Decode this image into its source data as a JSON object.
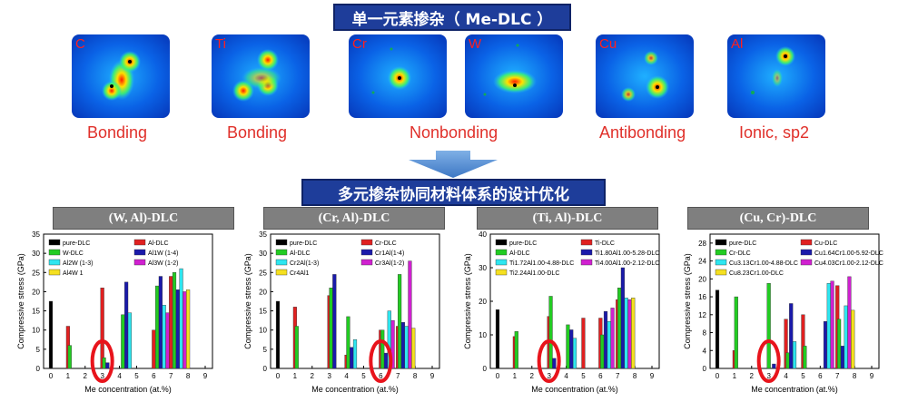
{
  "banner_top": "单一元素掺杂（ Me-DLC ）",
  "banner_mid": "多元掺杂协同材料体系的设计优化",
  "elements": [
    {
      "symbol": "C",
      "caption": "Bonding"
    },
    {
      "symbol": "Ti",
      "caption": "Bonding"
    },
    {
      "symbol": "Cr",
      "caption": "Nonbonding"
    },
    {
      "symbol": "W",
      "caption": ""
    },
    {
      "symbol": "Cu",
      "caption": "Antibonding"
    },
    {
      "symbol": "Al",
      "caption": "Ionic, sp2"
    }
  ],
  "colors": {
    "banner": "#1e3d9a",
    "tab": "#7f7f7f",
    "highlight": "#e8141c"
  },
  "chart_data": [
    {
      "type": "bar",
      "title": "(W, Al)-DLC",
      "xlabel": "Me concentration (at.%)",
      "ylabel": "Compressive stress (GPa)",
      "ylim": [
        0,
        35
      ],
      "yticks": [
        0,
        5,
        10,
        15,
        20,
        25,
        30,
        35
      ],
      "xticks": [
        0,
        1,
        2,
        3,
        4,
        5,
        6,
        7,
        8,
        9
      ],
      "legend": [
        "pure-DLC",
        "Al-DLC",
        "W-DLC",
        "Al1W (1-4)",
        "Al2W (1-3)",
        "Al3W (1-2)",
        "Al4W 1"
      ],
      "series": [
        {
          "name": "pure-DLC",
          "color": "#000000",
          "points": [
            [
              0,
              17.5
            ]
          ]
        },
        {
          "name": "Al-DLC",
          "color": "#e02020",
          "points": [
            [
              1,
              11
            ],
            [
              3,
              21
            ],
            [
              6,
              10
            ],
            [
              7,
              24
            ]
          ]
        },
        {
          "name": "W-DLC",
          "color": "#22cc22",
          "points": [
            [
              1.1,
              6
            ],
            [
              3.1,
              2.8
            ],
            [
              4.2,
              14
            ],
            [
              6.2,
              21.5
            ],
            [
              7.2,
              25
            ]
          ]
        },
        {
          "name": "Al1W (1-4)",
          "color": "#1a1aaa",
          "points": [
            [
              3.3,
              1.5
            ],
            [
              4.4,
              22.5
            ],
            [
              6.4,
              24
            ],
            [
              7.4,
              20.5
            ]
          ]
        },
        {
          "name": "Al2W (1-3)",
          "color": "#2ee6f0",
          "points": [
            [
              4.6,
              14.5
            ],
            [
              6.6,
              16.5
            ],
            [
              7.6,
              26
            ]
          ]
        },
        {
          "name": "Al3W (1-2)",
          "color": "#d020d0",
          "points": [
            [
              6.8,
              14.5
            ],
            [
              7.8,
              20
            ]
          ]
        },
        {
          "name": "Al4W 1",
          "color": "#f5e020",
          "points": [
            [
              8,
              20.5
            ]
          ]
        }
      ],
      "highlight_x": 3
    },
    {
      "type": "bar",
      "title": "(Cr, Al)-DLC",
      "xlabel": "Me concentration (at.%)",
      "ylabel": "Compressive stress (GPa)",
      "ylim": [
        0,
        35
      ],
      "yticks": [
        0,
        5,
        10,
        15,
        20,
        25,
        30,
        35
      ],
      "xticks": [
        0,
        1,
        2,
        3,
        4,
        5,
        6,
        7,
        8,
        9
      ],
      "legend": [
        "pure-DLC",
        "Cr-DLC",
        "Al-DLC",
        "Cr1Al(1-4)",
        "Cr2Al(1-3)",
        "Cr3Al(1-2)",
        "Cr4Al1"
      ],
      "series": [
        {
          "name": "pure-DLC",
          "color": "#000000",
          "points": [
            [
              0,
              17.5
            ]
          ]
        },
        {
          "name": "Cr-DLC",
          "color": "#e02020",
          "points": [
            [
              1,
              16
            ],
            [
              3,
              19
            ],
            [
              4,
              3.5
            ],
            [
              6,
              10
            ],
            [
              7,
              11
            ]
          ]
        },
        {
          "name": "Al-DLC",
          "color": "#22cc22",
          "points": [
            [
              1.1,
              11
            ],
            [
              3.1,
              21
            ],
            [
              4.1,
              13.5
            ],
            [
              6.1,
              10
            ],
            [
              7.1,
              24.5
            ]
          ]
        },
        {
          "name": "Cr1Al(1-4)",
          "color": "#1a1aaa",
          "points": [
            [
              3.3,
              24.5
            ],
            [
              4.3,
              5.5
            ],
            [
              6.3,
              4
            ],
            [
              7.3,
              12
            ]
          ]
        },
        {
          "name": "Cr2Al(1-3)",
          "color": "#2ee6f0",
          "points": [
            [
              4.5,
              7.5
            ],
            [
              6.5,
              15
            ],
            [
              7.5,
              11
            ]
          ]
        },
        {
          "name": "Cr3Al(1-2)",
          "color": "#d020d0",
          "points": [
            [
              6.7,
              12.5
            ],
            [
              7.7,
              28
            ]
          ]
        },
        {
          "name": "Cr4Al1",
          "color": "#f5e020",
          "points": [
            [
              7.9,
              10.5
            ]
          ]
        }
      ],
      "highlight_x": 6
    },
    {
      "type": "bar",
      "title": "(Ti, Al)-DLC",
      "xlabel": "Me concentration (at.%)",
      "ylabel": "Compressive stress (GPa)",
      "ylim": [
        0,
        40
      ],
      "yticks": [
        0,
        10,
        20,
        30,
        40
      ],
      "xticks": [
        0,
        1,
        2,
        3,
        4,
        5,
        6,
        7,
        8,
        9
      ],
      "legend": [
        "pure-DLC",
        "Ti-DLC",
        "Al-DLC",
        "Ti1.80Al1.00-5.28-DLC",
        "Ti1.72Al1.00-4.88-DLC",
        "Ti4.00Al1.00-2.12-DLC",
        "Ti2.24Al1.00-DLC"
      ],
      "series": [
        {
          "name": "pure-DLC",
          "color": "#000000",
          "points": [
            [
              0,
              17.5
            ]
          ]
        },
        {
          "name": "Ti-DLC",
          "color": "#e02020",
          "points": [
            [
              1,
              9.5
            ],
            [
              3,
              15.5
            ],
            [
              5,
              15
            ],
            [
              6,
              15
            ],
            [
              7,
              20.5
            ]
          ]
        },
        {
          "name": "Al-DLC",
          "color": "#22cc22",
          "points": [
            [
              1.1,
              11
            ],
            [
              3.1,
              21.5
            ],
            [
              4.1,
              13
            ],
            [
              6.1,
              10
            ],
            [
              7.1,
              24
            ]
          ]
        },
        {
          "name": "Ti1.80Al1.00-5.28-DLC",
          "color": "#1a1aaa",
          "points": [
            [
              3.3,
              3
            ],
            [
              4.3,
              11.5
            ],
            [
              6.3,
              17
            ],
            [
              7.3,
              30
            ]
          ]
        },
        {
          "name": "Ti1.72Al1.00-4.88-DLC",
          "color": "#2ee6f0",
          "points": [
            [
              4.5,
              9
            ],
            [
              6.5,
              14
            ],
            [
              7.5,
              21
            ]
          ]
        },
        {
          "name": "Ti4.00Al1.00-2.12-DLC",
          "color": "#d020d0",
          "points": [
            [
              6.7,
              18
            ],
            [
              7.7,
              20.5
            ]
          ]
        },
        {
          "name": "Ti2.24Al1.00-DLC",
          "color": "#f5e020",
          "points": [
            [
              7.9,
              21
            ]
          ]
        }
      ],
      "highlight_x": 3
    },
    {
      "type": "bar",
      "title": "(Cu, Cr)-DLC",
      "xlabel": "Me concentration (at.%)",
      "ylabel": "Compressive stress (GPa)",
      "ylim": [
        0,
        30
      ],
      "yticks": [
        0,
        4,
        8,
        12,
        16,
        20,
        24,
        28
      ],
      "xticks": [
        0,
        1,
        2,
        3,
        4,
        5,
        6,
        7,
        8,
        9
      ],
      "legend": [
        "pure-DLC",
        "Cu-DLC",
        "Cr-DLC",
        "Cu1.64Cr1.00-5.92-DLC",
        "Cu3.13Cr1.00-4.88-DLC",
        "Cu4.03Cr1.00-2.12-DLC",
        "Cu8.23Cr1.00-DLC"
      ],
      "series": [
        {
          "name": "pure-DLC",
          "color": "#000000",
          "points": [
            [
              0,
              17.5
            ]
          ]
        },
        {
          "name": "Cu-DLC",
          "color": "#e02020",
          "points": [
            [
              1,
              4
            ],
            [
              4,
              11
            ],
            [
              5,
              12
            ],
            [
              7,
              18.5
            ]
          ]
        },
        {
          "name": "Cr-DLC",
          "color": "#22cc22",
          "points": [
            [
              1.1,
              16
            ],
            [
              3,
              19
            ],
            [
              4.1,
              3.5
            ],
            [
              5.1,
              5
            ],
            [
              7.1,
              11
            ]
          ]
        },
        {
          "name": "Cu1.64Cr1.00-5.92-DLC",
          "color": "#1a1aaa",
          "points": [
            [
              3.3,
              1
            ],
            [
              4.3,
              14.5
            ],
            [
              6.3,
              10.5
            ],
            [
              7.3,
              5
            ]
          ]
        },
        {
          "name": "Cu3.13Cr1.00-4.88-DLC",
          "color": "#2ee6f0",
          "points": [
            [
              4.5,
              6
            ],
            [
              6.5,
              19
            ],
            [
              7.5,
              14
            ]
          ]
        },
        {
          "name": "Cu4.03Cr1.00-2.12-DLC",
          "color": "#d020d0",
          "points": [
            [
              6.7,
              19.5
            ],
            [
              7.7,
              20.5
            ]
          ]
        },
        {
          "name": "Cu8.23Cr1.00-DLC",
          "color": "#f5e020",
          "points": [
            [
              7.9,
              13
            ]
          ]
        }
      ],
      "highlight_x": 3
    }
  ]
}
